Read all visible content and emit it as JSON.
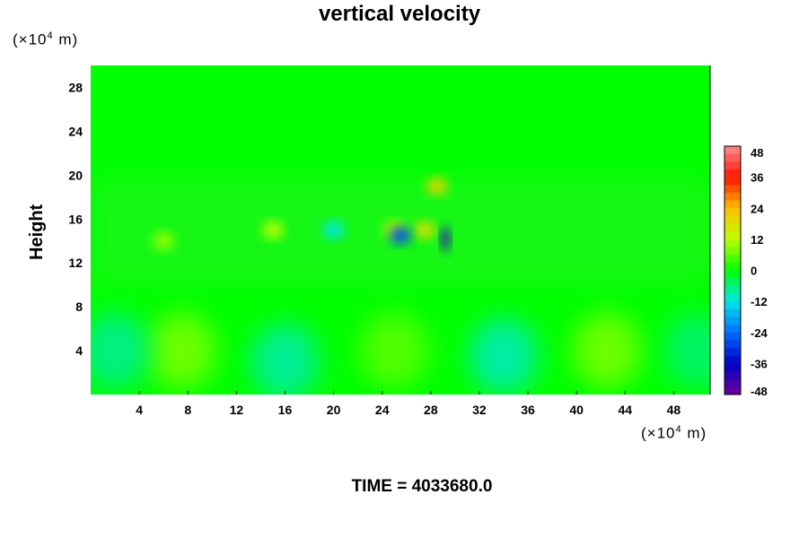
{
  "chart_data": {
    "type": "heatmap",
    "title": "vertical velocity",
    "ylabel": "Height",
    "y_unit": {
      "prefix": "(×10",
      "exp": "4",
      "suffix": " m)"
    },
    "x_unit": {
      "prefix": "(×10",
      "exp": "4",
      "suffix": " m)"
    },
    "xlim": [
      0,
      51
    ],
    "ylim": [
      0,
      30
    ],
    "x_ticks": [
      "4",
      "8",
      "12",
      "16",
      "20",
      "24",
      "28",
      "32",
      "36",
      "40",
      "44",
      "48"
    ],
    "y_ticks": [
      "4",
      "8",
      "12",
      "16",
      "20",
      "24",
      "28"
    ],
    "colorbar": {
      "range": [
        -48,
        48
      ],
      "ticks": [
        "48",
        "36",
        "24",
        "12",
        "0",
        "-12",
        "-24",
        "-36",
        "-48"
      ]
    },
    "features": [
      {
        "kind": "updraft",
        "x": 28.5,
        "y": 19,
        "value": 20
      },
      {
        "kind": "updraft",
        "x": 27.5,
        "y": 15,
        "value": 18
      },
      {
        "kind": "updraft",
        "x": 25,
        "y": 15,
        "value": 15
      },
      {
        "kind": "updraft",
        "x": 15,
        "y": 15,
        "value": 12
      },
      {
        "kind": "updraft",
        "x": 6,
        "y": 14,
        "value": 10
      },
      {
        "kind": "downdraft",
        "x": 29.2,
        "y": 14.2,
        "value": -40
      },
      {
        "kind": "downdraft",
        "x": 25.5,
        "y": 14.5,
        "value": -28
      },
      {
        "kind": "downdraft",
        "x": 20,
        "y": 15,
        "value": -12
      },
      {
        "kind": "lower_updraft",
        "x": 7.5,
        "y": 4,
        "value": 8
      },
      {
        "kind": "lower_updraft",
        "x": 25,
        "y": 4,
        "value": 6
      },
      {
        "kind": "lower_updraft",
        "x": 42.5,
        "y": 4,
        "value": 8
      },
      {
        "kind": "lower_downdraft",
        "x": 16,
        "y": 3,
        "value": -9
      },
      {
        "kind": "lower_downdraft",
        "x": 34,
        "y": 3.5,
        "value": -10
      },
      {
        "kind": "lower_downdraft",
        "x": 2,
        "y": 4,
        "value": -8
      },
      {
        "kind": "lower_downdraft",
        "x": 50,
        "y": 4,
        "value": -6
      }
    ]
  },
  "footer": {
    "time": "TIME = 4033680.0"
  }
}
